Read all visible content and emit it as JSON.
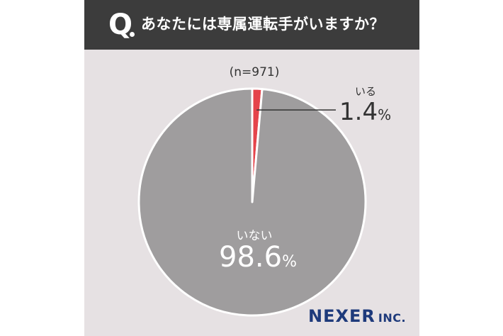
{
  "header": {
    "q_mark": "Q",
    "question": "あなたには専属運転手がいますか？"
  },
  "sample_size": "(n=971)",
  "chart_data": {
    "type": "pie",
    "title": "あなたには専属運転手がいますか？",
    "slices": [
      {
        "label": "いる",
        "value": 1.4,
        "display_value": "1.4",
        "unit": "%",
        "color": "#e5444b"
      },
      {
        "label": "いない",
        "value": 98.6,
        "display_value": "98.6",
        "unit": "%",
        "color": "#9f9d9e"
      }
    ],
    "legend": "none"
  },
  "logo": {
    "name": "NEXER",
    "suffix": "INC.",
    "color": "#1e3a7b"
  },
  "colors": {
    "background": "#e6e1e3",
    "header_bg": "#3c3c3c",
    "leader_line": "#333333"
  }
}
